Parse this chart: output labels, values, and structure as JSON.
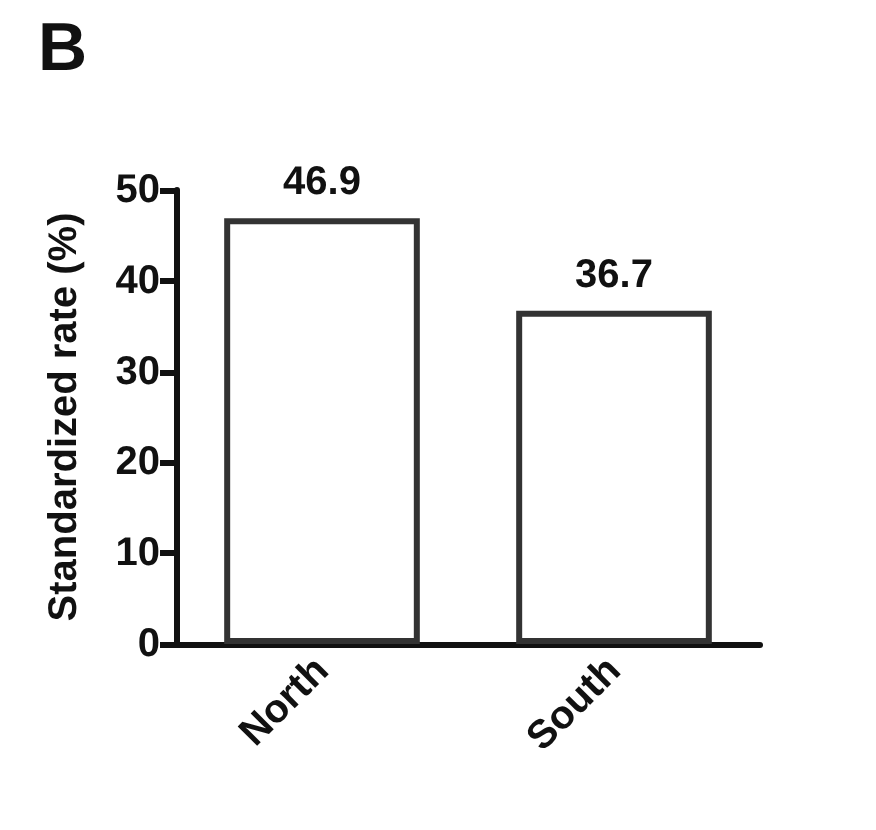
{
  "chart_data": {
    "type": "bar",
    "title": "B",
    "ylabel": "Standardized rate (%)",
    "categories": [
      "North",
      "South"
    ],
    "values": [
      46.9,
      36.7
    ],
    "color": "#333333",
    "ylim": [
      0,
      50
    ],
    "yticks": [
      0,
      10,
      20,
      30,
      40,
      50
    ],
    "data_labels": true,
    "grid": false
  }
}
